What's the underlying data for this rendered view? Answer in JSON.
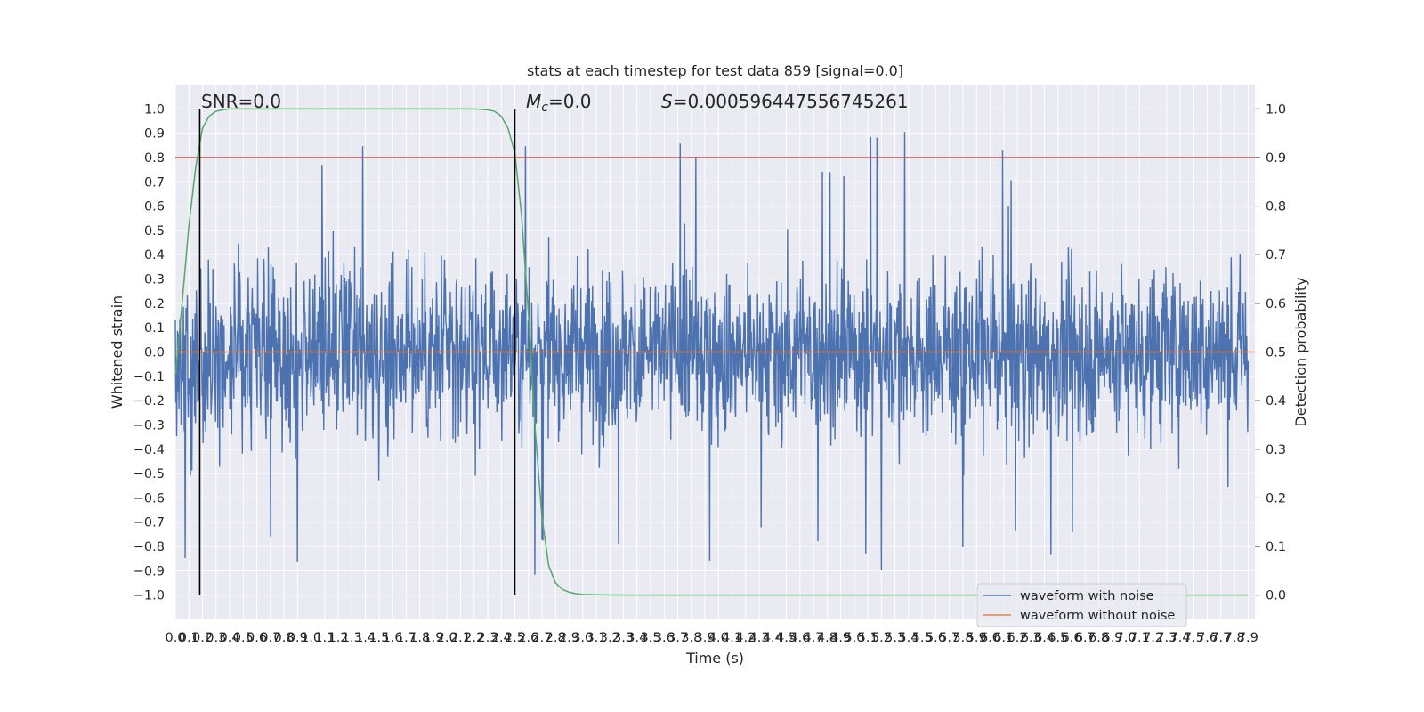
{
  "chart_data": {
    "type": "line",
    "title": "stats at each timestep for test data 859 [signal=0.0]",
    "xlabel": "Time (s)",
    "ylabel": "Whitened strain",
    "y2label": "Detection probability",
    "xlim": [
      0.0,
      7.95
    ],
    "ylim": [
      -1.1,
      1.1
    ],
    "y2lim": [
      -0.05,
      1.05
    ],
    "x_ticks": [
      "0.0",
      "0.1",
      "0.2",
      "0.3",
      "0.4",
      "0.5",
      "0.6",
      "0.7",
      "0.8",
      "0.9",
      "1.0",
      "1.1",
      "1.2",
      "1.3",
      "1.4",
      "1.5",
      "1.6",
      "1.7",
      "1.8",
      "1.9",
      "2.0",
      "2.1",
      "2.2",
      "2.3",
      "2.4",
      "2.5",
      "2.6",
      "2.7",
      "2.8",
      "2.9",
      "3.0",
      "3.1",
      "3.2",
      "3.3",
      "3.4",
      "3.5",
      "3.6",
      "3.7",
      "3.8",
      "3.9",
      "4.0",
      "4.1",
      "4.2",
      "4.3",
      "4.4",
      "4.5",
      "4.6",
      "4.7",
      "4.8",
      "4.9",
      "5.0",
      "5.1",
      "5.2",
      "5.3",
      "5.4",
      "5.5",
      "5.6",
      "5.7",
      "5.8",
      "5.9",
      "6.0",
      "6.1",
      "6.2",
      "6.3",
      "6.4",
      "6.5",
      "6.6",
      "6.7",
      "6.8",
      "6.9",
      "7.0",
      "7.1",
      "7.2",
      "7.3",
      "7.4",
      "7.5",
      "7.6",
      "7.7",
      "7.8",
      "7.9"
    ],
    "y_ticks": [
      "−1.0",
      "−0.9",
      "−0.8",
      "−0.7",
      "−0.6",
      "−0.5",
      "−0.4",
      "−0.3",
      "−0.2",
      "−0.1",
      "0.0",
      "0.1",
      "0.2",
      "0.3",
      "0.4",
      "0.5",
      "0.6",
      "0.7",
      "0.8",
      "0.9",
      "1.0"
    ],
    "y2_ticks": [
      "0.0",
      "0.1",
      "0.2",
      "0.3",
      "0.4",
      "0.5",
      "0.6",
      "0.7",
      "0.8",
      "0.9",
      "1.0"
    ],
    "annotations": {
      "snr": "SNR=0.0",
      "mc_symbol": "M",
      "mc_sub": "c",
      "mc_value": "=0.0",
      "s_symbol": "S",
      "s_value": "=0.000596447556745261"
    },
    "series": [
      {
        "name": "waveform with noise",
        "color": "#4c72b0",
        "noise_envelope": 0.45,
        "extreme_min": -1.0,
        "extreme_max": 0.94
      },
      {
        "name": "waveform without noise",
        "color": "#dd8452",
        "values": [
          0.0,
          0.0
        ]
      }
    ],
    "detection_probability": {
      "color": "#55a868",
      "x": [
        0.0,
        0.05,
        0.1,
        0.15,
        0.2,
        0.25,
        0.3,
        0.35,
        0.4,
        0.5,
        0.7,
        1.0,
        1.5,
        2.0,
        2.2,
        2.3,
        2.35,
        2.4,
        2.45,
        2.5,
        2.55,
        2.6,
        2.65,
        2.7,
        2.75,
        2.8,
        2.85,
        2.9,
        2.95,
        3.0,
        3.1,
        3.2,
        3.4,
        3.6,
        4.0,
        5.0,
        6.0,
        7.0,
        7.9
      ],
      "y": [
        0.45,
        0.6,
        0.76,
        0.88,
        0.96,
        0.985,
        0.995,
        0.998,
        1.0,
        1.0,
        1.0,
        1.0,
        1.0,
        1.0,
        1.0,
        0.998,
        0.995,
        0.985,
        0.96,
        0.91,
        0.78,
        0.58,
        0.34,
        0.16,
        0.06,
        0.025,
        0.012,
        0.006,
        0.003,
        0.0015,
        0.0007,
        0.0004,
        0.0002,
        0.0001,
        0.0,
        0.0,
        0.0,
        0.0,
        0.0
      ]
    },
    "threshold": {
      "value": 0.9,
      "color": "#c44e52"
    },
    "vlines": [
      0.18,
      2.5
    ],
    "legend_position": "lower right",
    "grid": true
  }
}
